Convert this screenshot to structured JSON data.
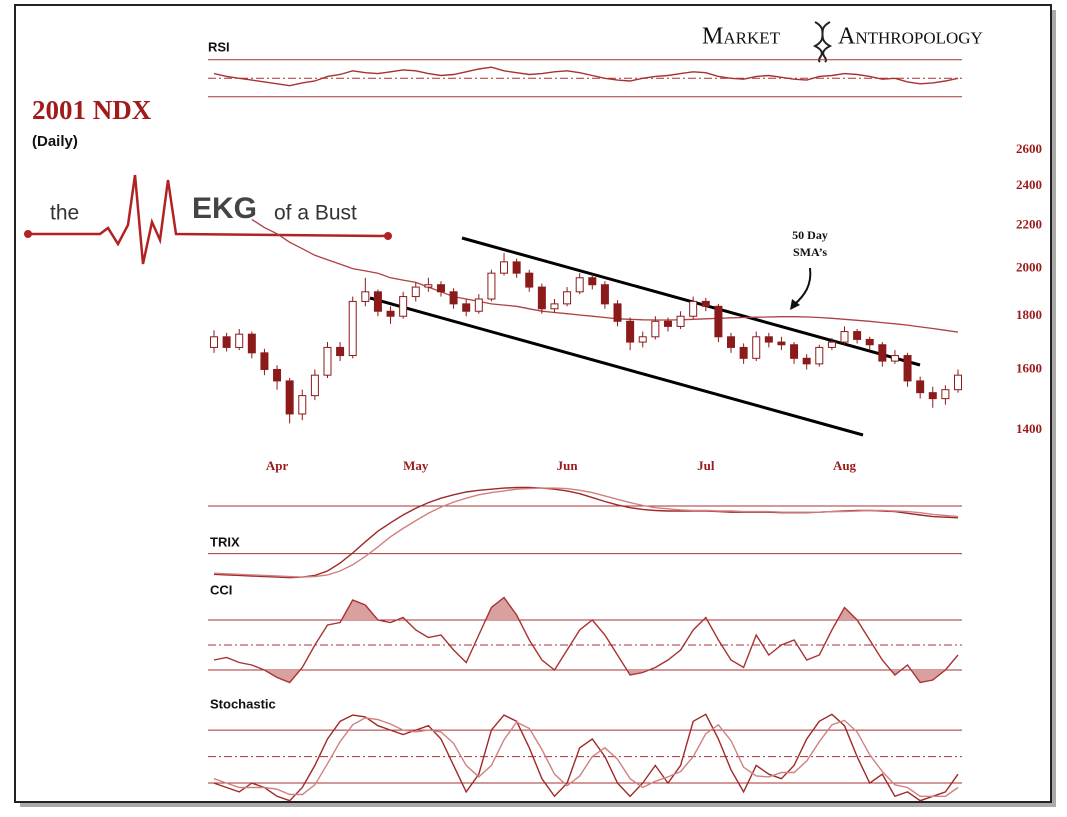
{
  "header": {
    "title": "2001 NDX",
    "subtitle": "(Daily)",
    "ekg": [
      "the",
      "EKG",
      "of a Bust"
    ],
    "logo": [
      "Market",
      "Anthropology"
    ]
  },
  "chart_data": [
    {
      "type": "candlestick",
      "log": true,
      "ylim": [
        1330,
        2700
      ],
      "yticks": [
        1400,
        1600,
        1800,
        2000,
        2200,
        2400,
        2600
      ],
      "grid": false,
      "color": "#8b1a1a",
      "up_color": "#ffffff",
      "sma_color": "#b04040",
      "annotation": [
        "50 Day",
        "SMA’s"
      ],
      "categories": [
        null,
        null,
        null,
        null,
        null,
        "Apr",
        null,
        null,
        null,
        null,
        null,
        null,
        null,
        null,
        null,
        null,
        "May",
        null,
        null,
        null,
        null,
        null,
        null,
        null,
        null,
        null,
        null,
        null,
        "Jun",
        null,
        null,
        null,
        null,
        null,
        null,
        null,
        null,
        null,
        null,
        "Jul",
        null,
        null,
        null,
        null,
        null,
        null,
        null,
        null,
        null,
        null,
        "Aug",
        null,
        null,
        null,
        null,
        null,
        null,
        null,
        null,
        null
      ],
      "open": [
        1680,
        1720,
        1680,
        1730,
        1660,
        1600,
        1560,
        1450,
        1510,
        1580,
        1680,
        1650,
        1860,
        1900,
        1820,
        1800,
        1880,
        1920,
        1930,
        1900,
        1850,
        1820,
        1870,
        1980,
        2030,
        1980,
        1920,
        1830,
        1850,
        1900,
        1960,
        1930,
        1850,
        1780,
        1700,
        1720,
        1780,
        1760,
        1800,
        1860,
        1840,
        1720,
        1680,
        1640,
        1720,
        1700,
        1690,
        1640,
        1620,
        1680,
        1700,
        1740,
        1710,
        1690,
        1630,
        1650,
        1560,
        1520,
        1500,
        1530
      ],
      "high": [
        1745,
        1735,
        1750,
        1740,
        1675,
        1615,
        1570,
        1530,
        1600,
        1700,
        1700,
        1880,
        1960,
        1910,
        1840,
        1900,
        1940,
        1960,
        1945,
        1915,
        1870,
        1890,
        1995,
        2070,
        2045,
        1995,
        1935,
        1870,
        1920,
        1980,
        1975,
        1945,
        1865,
        1795,
        1740,
        1800,
        1795,
        1820,
        1880,
        1875,
        1850,
        1735,
        1695,
        1740,
        1735,
        1720,
        1700,
        1655,
        1690,
        1715,
        1760,
        1750,
        1720,
        1700,
        1670,
        1660,
        1575,
        1540,
        1545,
        1600
      ],
      "low": [
        1660,
        1665,
        1670,
        1640,
        1580,
        1530,
        1420,
        1430,
        1495,
        1570,
        1630,
        1640,
        1840,
        1800,
        1770,
        1790,
        1860,
        1900,
        1880,
        1830,
        1800,
        1810,
        1860,
        1970,
        1960,
        1900,
        1810,
        1815,
        1840,
        1890,
        1910,
        1830,
        1760,
        1670,
        1680,
        1710,
        1740,
        1750,
        1790,
        1820,
        1700,
        1660,
        1620,
        1630,
        1680,
        1670,
        1620,
        1600,
        1610,
        1670,
        1690,
        1695,
        1670,
        1610,
        1620,
        1540,
        1500,
        1470,
        1480,
        1520
      ],
      "close": [
        1720,
        1680,
        1730,
        1660,
        1600,
        1560,
        1450,
        1510,
        1580,
        1680,
        1650,
        1860,
        1900,
        1820,
        1800,
        1880,
        1920,
        1930,
        1900,
        1850,
        1820,
        1870,
        1980,
        2030,
        1980,
        1920,
        1830,
        1850,
        1900,
        1960,
        1930,
        1850,
        1780,
        1700,
        1720,
        1780,
        1760,
        1800,
        1860,
        1840,
        1720,
        1680,
        1640,
        1720,
        1700,
        1690,
        1640,
        1620,
        1680,
        1700,
        1740,
        1710,
        1690,
        1630,
        1650,
        1560,
        1520,
        1500,
        1530,
        1580
      ],
      "sma": [
        null,
        null,
        null,
        2230,
        2190,
        2160,
        2120,
        2090,
        2060,
        2040,
        2020,
        2000,
        1990,
        1980,
        1960,
        1950,
        1940,
        1920,
        1900,
        1880,
        1870,
        1860,
        1850,
        1845,
        1840,
        1830,
        1820,
        1815,
        1810,
        1805,
        1800,
        1795,
        1790,
        1788,
        1786,
        1785,
        1785,
        1786,
        1788,
        1790,
        1792,
        1794,
        1795,
        1796,
        1797,
        1798,
        1798,
        1797,
        1795,
        1792,
        1788,
        1784,
        1780,
        1775,
        1770,
        1765,
        1758,
        1752,
        1745,
        1738
      ]
    },
    {
      "type": "line",
      "title": "RSI",
      "ylim": [
        0,
        100
      ],
      "levels": [
        70,
        50,
        30
      ],
      "level_color": "#a83232",
      "series": [
        {
          "color": "#a83232",
          "values": [
            55,
            52,
            50,
            48,
            46,
            44,
            42,
            45,
            47,
            52,
            54,
            58,
            56,
            55,
            57,
            59,
            58,
            55,
            53,
            54,
            57,
            60,
            62,
            58,
            56,
            54,
            55,
            57,
            58,
            56,
            53,
            50,
            48,
            47,
            50,
            52,
            53,
            55,
            57,
            56,
            52,
            50,
            49,
            52,
            53,
            51,
            49,
            48,
            52,
            53,
            55,
            54,
            52,
            49,
            50,
            46,
            44,
            45,
            47,
            50
          ]
        }
      ]
    },
    {
      "type": "line",
      "title": "TRIX",
      "ylim": [
        -1,
        1
      ],
      "levels": [
        0.5,
        -0.35
      ],
      "level_color": "#a83232",
      "series": [
        {
          "color": "#a02828",
          "values": [
            -0.72,
            -0.73,
            -0.74,
            -0.75,
            -0.76,
            -0.77,
            -0.78,
            -0.77,
            -0.74,
            -0.66,
            -0.52,
            -0.34,
            -0.14,
            0.05,
            0.2,
            0.34,
            0.46,
            0.56,
            0.64,
            0.7,
            0.75,
            0.78,
            0.8,
            0.82,
            0.83,
            0.83,
            0.82,
            0.8,
            0.77,
            0.72,
            0.65,
            0.58,
            0.52,
            0.47,
            0.44,
            0.42,
            0.41,
            0.41,
            0.41,
            0.41,
            0.4,
            0.39,
            0.39,
            0.39,
            0.39,
            0.38,
            0.38,
            0.38,
            0.39,
            0.4,
            0.41,
            0.42,
            0.42,
            0.41,
            0.4,
            0.37,
            0.34,
            0.31,
            0.3,
            0.29
          ]
        },
        {
          "color": "#d08080",
          "values": [
            -0.7,
            -0.71,
            -0.72,
            -0.73,
            -0.74,
            -0.75,
            -0.76,
            -0.77,
            -0.76,
            -0.73,
            -0.66,
            -0.55,
            -0.4,
            -0.23,
            -0.05,
            0.1,
            0.24,
            0.37,
            0.48,
            0.57,
            0.64,
            0.7,
            0.74,
            0.77,
            0.8,
            0.81,
            0.82,
            0.82,
            0.81,
            0.78,
            0.74,
            0.68,
            0.62,
            0.56,
            0.51,
            0.47,
            0.45,
            0.43,
            0.42,
            0.42,
            0.41,
            0.41,
            0.4,
            0.4,
            0.4,
            0.39,
            0.39,
            0.39,
            0.39,
            0.4,
            0.4,
            0.41,
            0.42,
            0.42,
            0.41,
            0.4,
            0.38,
            0.35,
            0.33,
            0.31
          ]
        }
      ]
    },
    {
      "type": "line",
      "title": "CCI",
      "ylim": [
        -250,
        250
      ],
      "levels": [
        100,
        0,
        -100
      ],
      "level_color": "#a83232",
      "shade": true,
      "shade_color": "#d9a0a0",
      "series": [
        {
          "color": "#a83232",
          "values": [
            -60,
            -50,
            -70,
            -80,
            -100,
            -130,
            -150,
            -90,
            0,
            80,
            90,
            180,
            160,
            100,
            90,
            110,
            60,
            30,
            40,
            -20,
            -70,
            40,
            150,
            190,
            120,
            20,
            -60,
            -100,
            -20,
            60,
            100,
            40,
            -40,
            -120,
            -110,
            -90,
            -60,
            -20,
            60,
            110,
            20,
            -60,
            -90,
            40,
            -40,
            0,
            20,
            -60,
            -40,
            60,
            150,
            100,
            20,
            -60,
            -120,
            -80,
            -150,
            -140,
            -100,
            -40
          ]
        }
      ]
    },
    {
      "type": "line",
      "title": "Stochastic",
      "ylim": [
        0,
        100
      ],
      "levels": [
        80,
        50,
        20
      ],
      "level_color": "#a83232",
      "series": [
        {
          "color": "#a02828",
          "values": [
            20,
            15,
            10,
            20,
            15,
            5,
            0,
            15,
            40,
            70,
            90,
            97,
            95,
            85,
            80,
            75,
            80,
            85,
            70,
            40,
            10,
            30,
            80,
            97,
            90,
            60,
            25,
            5,
            20,
            60,
            70,
            50,
            20,
            5,
            20,
            40,
            20,
            40,
            90,
            98,
            70,
            35,
            10,
            40,
            30,
            25,
            40,
            70,
            90,
            98,
            85,
            50,
            20,
            30,
            5,
            10,
            0,
            5,
            10,
            30
          ]
        },
        {
          "color": "#d08080",
          "values": [
            25,
            20,
            15,
            15,
            15,
            13,
            7,
            7,
            18,
            42,
            67,
            86,
            94,
            92,
            87,
            80,
            78,
            80,
            78,
            65,
            40,
            27,
            40,
            69,
            89,
            82,
            58,
            30,
            17,
            28,
            50,
            60,
            47,
            25,
            15,
            22,
            27,
            33,
            50,
            76,
            86,
            68,
            38,
            28,
            27,
            32,
            32,
            45,
            67,
            86,
            91,
            78,
            52,
            33,
            18,
            15,
            5,
            5,
            5,
            15
          ]
        }
      ]
    }
  ]
}
